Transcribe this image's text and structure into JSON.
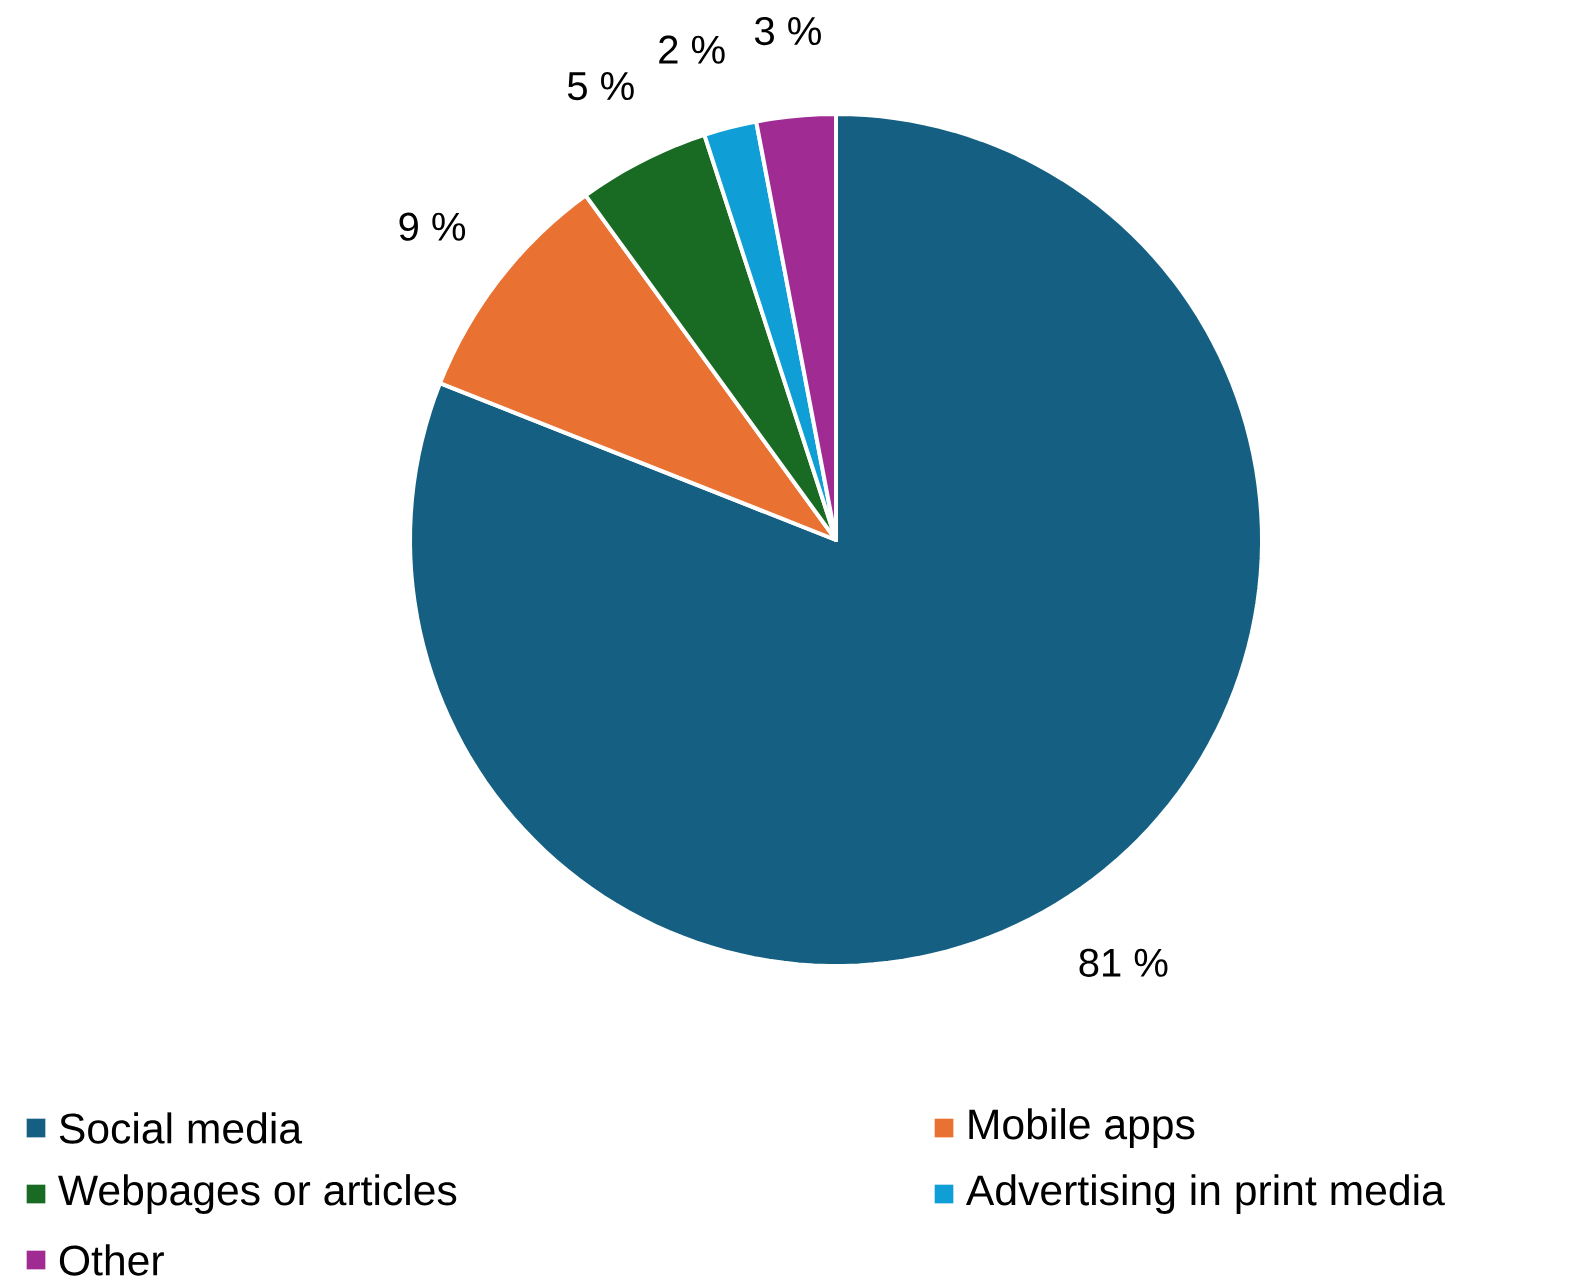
{
  "chart_data": {
    "type": "pie",
    "categories": [
      "Social media",
      "Mobile apps",
      "Webpages or articles",
      "Advertising in print media",
      "Other"
    ],
    "values": [
      81,
      9,
      5,
      2,
      3
    ],
    "value_labels": [
      "81 %",
      "9 %",
      "5 %",
      "2 %",
      "3 %"
    ],
    "colors": [
      "#156082",
      "#e97132",
      "#196b24",
      "#0f9ed5",
      "#a02b93"
    ],
    "legend": "bottom"
  }
}
